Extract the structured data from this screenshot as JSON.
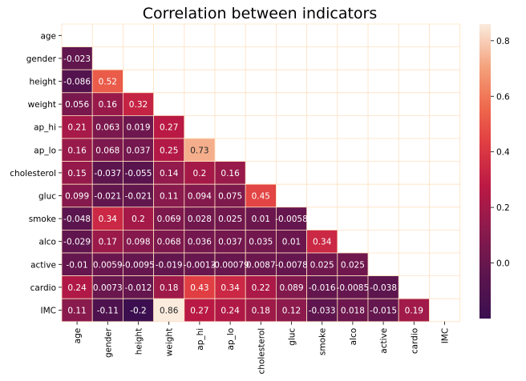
{
  "chart_data": {
    "type": "heatmap",
    "title": "Correlation between indicators",
    "variables": [
      "age",
      "gender",
      "height",
      "weight",
      "ap_hi",
      "ap_lo",
      "cholesterol",
      "gluc",
      "smoke",
      "alco",
      "active",
      "cardio",
      "IMC"
    ],
    "lower_triangle": [
      [],
      [
        "-0.023"
      ],
      [
        "-0.086",
        "0.52"
      ],
      [
        "0.056",
        "0.16",
        "0.32"
      ],
      [
        "0.21",
        "0.063",
        "0.019",
        "0.27"
      ],
      [
        "0.16",
        "0.068",
        "0.037",
        "0.25",
        "0.73"
      ],
      [
        "0.15",
        "-0.037",
        "-0.055",
        "0.14",
        "0.2",
        "0.16"
      ],
      [
        "0.099",
        "-0.021",
        "-0.021",
        "0.11",
        "0.094",
        "0.075",
        "0.45"
      ],
      [
        "-0.048",
        "0.34",
        "0.2",
        "0.069",
        "0.028",
        "0.025",
        "0.01",
        "-0.0058"
      ],
      [
        "-0.029",
        "0.17",
        "0.098",
        "0.068",
        "0.036",
        "0.037",
        "0.035",
        "0.01",
        "0.34"
      ],
      [
        "-0.01",
        "0.0059",
        "-0.0095",
        "-0.019",
        "-0.0013",
        "-0.00079",
        "0.0087",
        "-0.0078",
        "0.025",
        "0.025"
      ],
      [
        "0.24",
        "0.0073",
        "-0.012",
        "0.18",
        "0.43",
        "0.34",
        "0.22",
        "0.089",
        "-0.016",
        "-0.0085",
        "-0.038"
      ],
      [
        "0.11",
        "-0.11",
        "-0.2",
        "0.86",
        "0.27",
        "0.24",
        "0.18",
        "0.12",
        "-0.033",
        "0.018",
        "-0.015",
        "0.19"
      ]
    ],
    "mask": "upper-triangle-and-diagonal",
    "colormap": "rocket",
    "vmin": -0.2,
    "vmax": 0.86,
    "colorbar_ticks": [
      "0.0",
      "0.2",
      "0.4",
      "0.6",
      "0.8"
    ],
    "colorbar_tick_values": [
      0.0,
      0.2,
      0.4,
      0.6,
      0.8
    ],
    "grid_line_color": "#ffe0c0",
    "annotations": true
  }
}
